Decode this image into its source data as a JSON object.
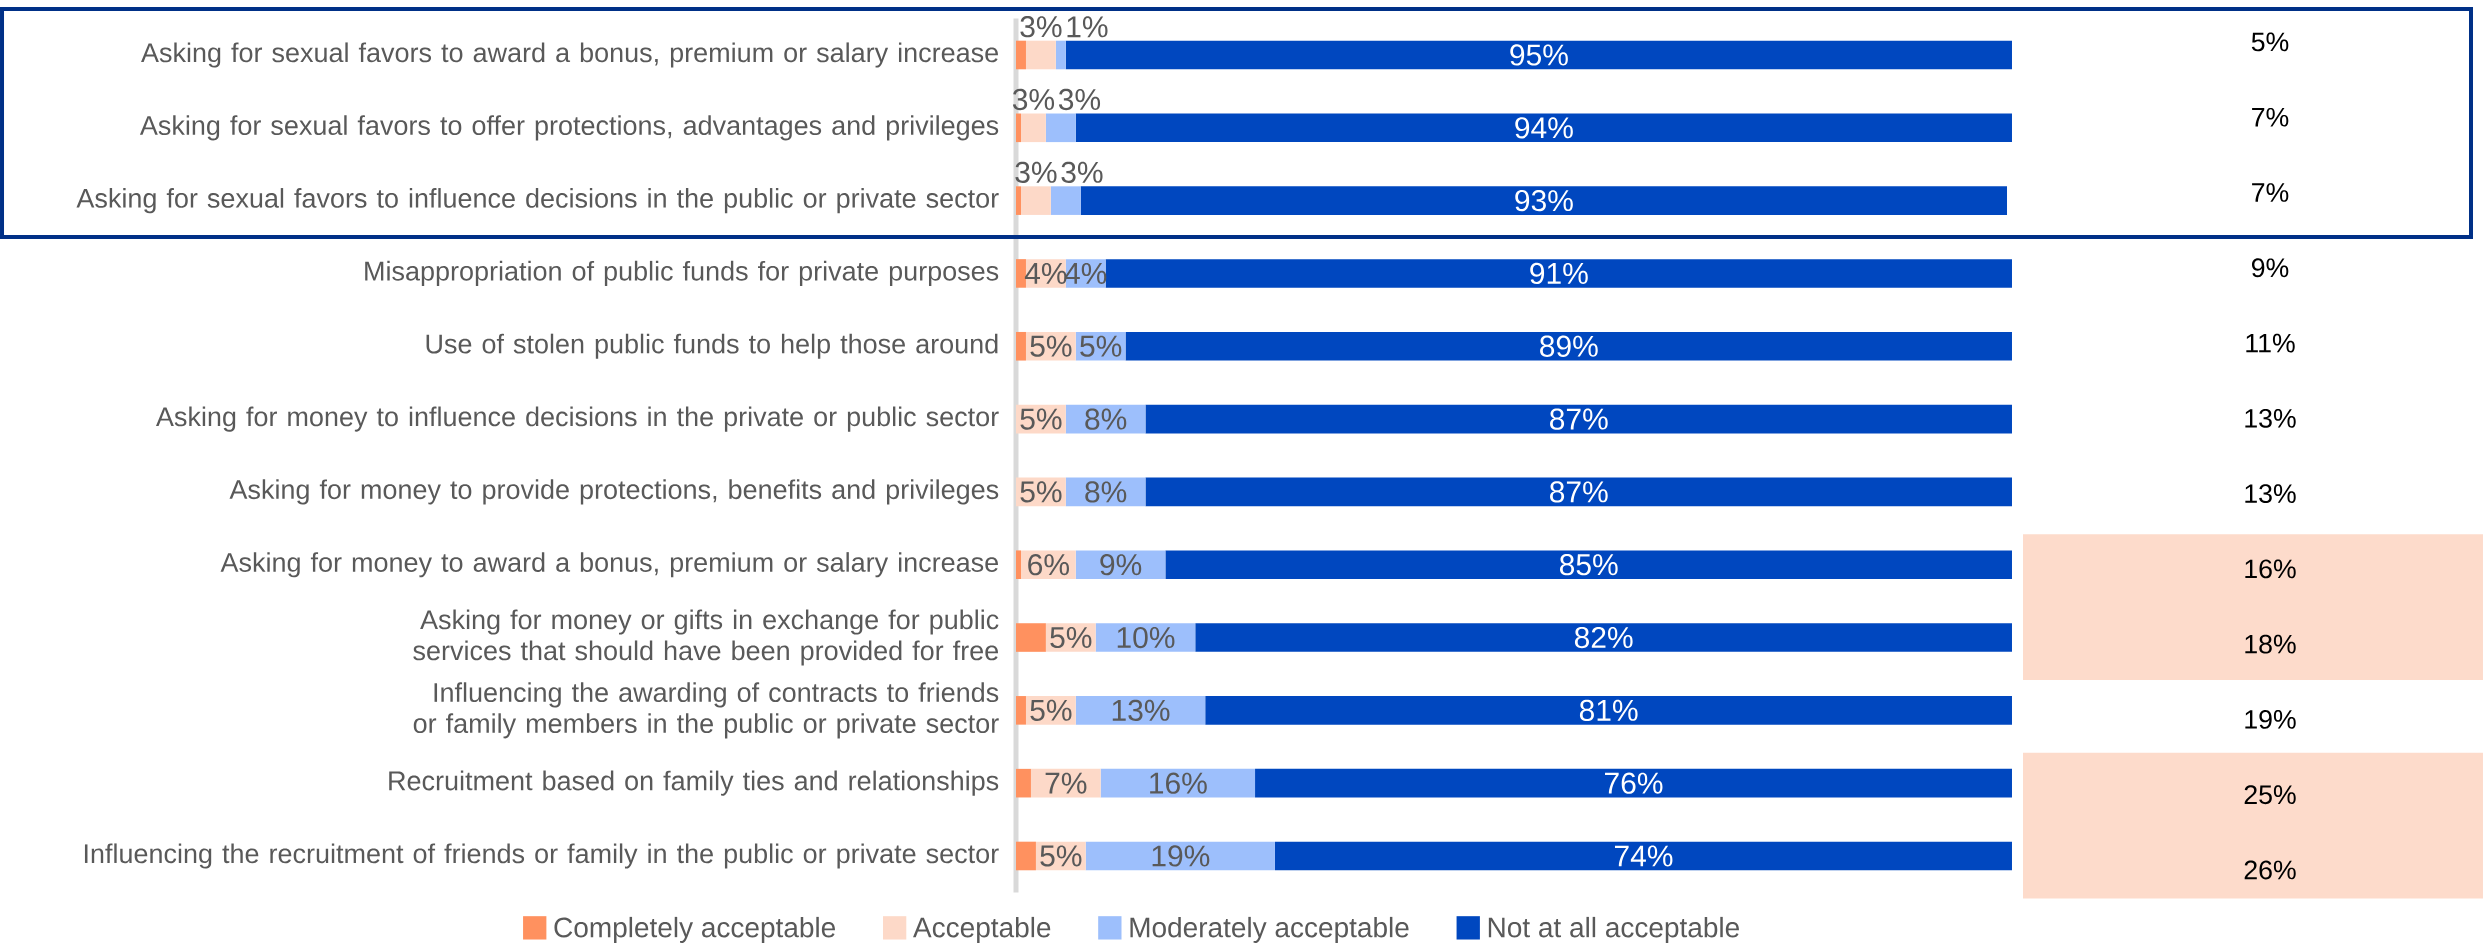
{
  "chart_data": {
    "type": "bar",
    "orientation": "horizontal",
    "stacked": true,
    "categories": [
      "Asking for sexual favors to award a bonus, premium or salary increase",
      "Asking for sexual favors to offer protections, advantages and privileges",
      "Asking for sexual favors to influence decisions in the public or private sector",
      "Misappropriation of public funds for private purposes",
      "Use of stolen public funds to help those around",
      "Asking for money to influence decisions in the private or public sector",
      "Asking for money to provide protections, benefits and privileges",
      "Asking for money to award a bonus, premium or salary increase",
      "Asking for money or gifts in exchange for public services that should have been provided for free",
      "Influencing the awarding of contracts to friends or family members in the public or private sector",
      "Recruitment based on family ties and relationships",
      "Influencing the recruitment of friends or family in the public or private sector"
    ],
    "series": [
      {
        "name": "Completely acceptable",
        "color": "#ff915f",
        "values": [
          1,
          0.5,
          0.5,
          1,
          1,
          0,
          0,
          0.5,
          3,
          1,
          1.5,
          2
        ],
        "value_labels": [
          null,
          null,
          null,
          null,
          null,
          null,
          null,
          null,
          null,
          null,
          null,
          null
        ]
      },
      {
        "name": "Acceptable",
        "color": "#fdd9c8",
        "values": [
          3,
          2.5,
          3,
          4,
          5,
          5,
          5,
          5.5,
          5,
          5,
          7,
          5
        ],
        "value_labels": [
          "3%",
          "3%",
          "3%",
          "4%",
          "5%",
          "5%",
          "5%",
          "6%",
          "5%",
          "5%",
          "7%",
          "5%"
        ]
      },
      {
        "name": "Moderately acceptable",
        "color": "#9dbffc",
        "values": [
          1,
          3,
          3,
          4,
          5,
          8,
          8,
          9,
          10,
          13,
          15.5,
          19
        ],
        "value_labels": [
          "1%",
          "3%",
          "3%",
          "4%",
          "5%",
          "8%",
          "8%",
          "9%",
          "10%",
          "13%",
          "16%",
          "19%"
        ]
      },
      {
        "name": "Not at all acceptable",
        "color": "#0047bf",
        "values": [
          95,
          94,
          93,
          91,
          89,
          87,
          87,
          85,
          82,
          81,
          76,
          74
        ],
        "value_labels": [
          "95%",
          "94%",
          "93%",
          "91%",
          "89%",
          "87%",
          "87%",
          "85%",
          "82%",
          "81%",
          "76%",
          "74%"
        ]
      }
    ],
    "xlim": [
      0,
      100
    ],
    "tick_labels": "y",
    "legend": "bottom",
    "annotations": [
      "5%",
      "7%",
      "7%",
      "9%",
      "11%",
      "13%",
      "13%",
      "16%",
      "18%",
      "19%",
      "25%",
      "26%"
    ]
  }
}
